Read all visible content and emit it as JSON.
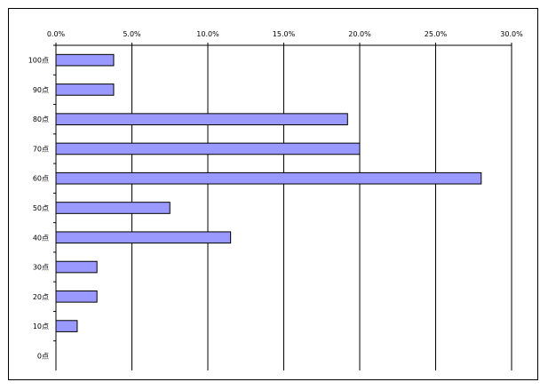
{
  "chart_data": {
    "type": "bar",
    "orientation": "horizontal",
    "categories": [
      "100点",
      "90点",
      "80点",
      "70点",
      "60点",
      "50点",
      "40点",
      "30点",
      "20点",
      "10点",
      "0点"
    ],
    "x_ticks": [
      "0.0%",
      "5.0%",
      "10.0%",
      "15.0%",
      "20.0%",
      "25.0%",
      "30.0%"
    ],
    "xlim": [
      0,
      30
    ],
    "series": [
      {
        "values": [
          3.8,
          3.8,
          19.2,
          20.0,
          28.0,
          7.5,
          11.5,
          2.7,
          2.7,
          1.4,
          0.0
        ]
      }
    ],
    "x_axis_position": "top",
    "grid": "vertical",
    "legend": "none",
    "bar_color": "#9999ff",
    "bar_edge_color": "#000000"
  }
}
